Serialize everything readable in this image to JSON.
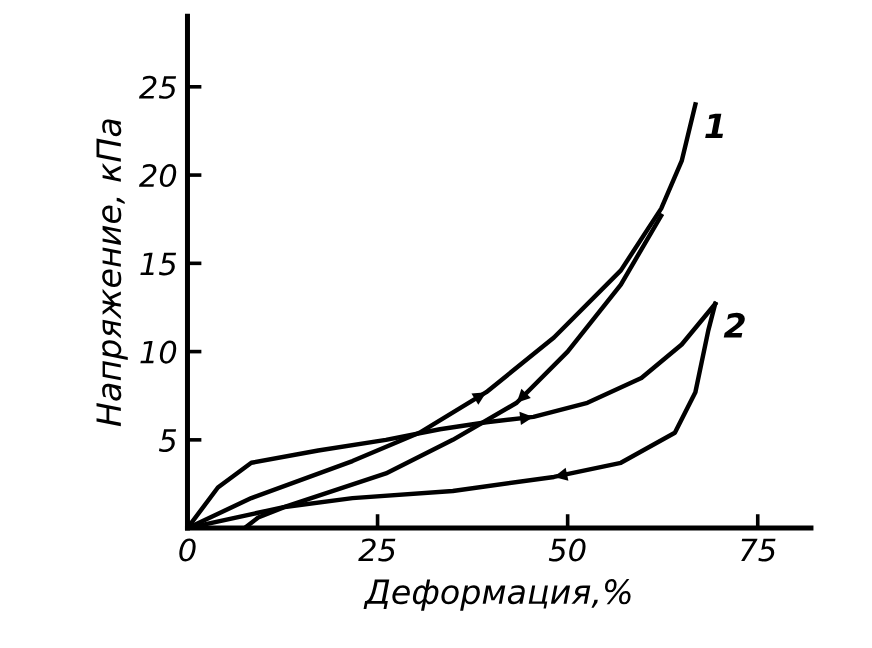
{
  "chart_data": {
    "type": "line",
    "xlabel": "Деформация,%",
    "ylabel": "Напряжение, кПа",
    "xlim": [
      0,
      82
    ],
    "ylim": [
      0,
      29
    ],
    "xticks": [
      0,
      25,
      50,
      75
    ],
    "yticks": [
      5,
      10,
      15,
      20,
      25
    ],
    "grid": false,
    "legend": false,
    "marker": "none",
    "line_style": "solid",
    "series": [
      {
        "name": "1",
        "color": "#000000",
        "x": [
          0,
          8.4,
          21.7,
          30.5,
          39.3,
          48.2,
          57.0,
          62.3,
          65.0,
          66.8
        ],
        "values": [
          0,
          1.7,
          3.8,
          5.4,
          7.7,
          10.8,
          14.6,
          18.1,
          20.8,
          24.0
        ]
      },
      {
        "color": "#000000",
        "x": [
          62.3,
          57.0,
          50.0,
          43.3,
          34.9,
          26.1,
          12.8,
          0
        ],
        "values": [
          17.7,
          13.8,
          10.0,
          7.1,
          5.0,
          3.1,
          1.2,
          0
        ]
      },
      {
        "name": "2",
        "color": "#000000",
        "x": [
          0,
          4.0,
          8.4,
          17.2,
          26.1,
          33.2,
          39.3,
          45.5,
          52.6,
          59.7,
          65.0,
          69.4
        ],
        "values": [
          0,
          2.3,
          3.7,
          4.4,
          5.0,
          5.6,
          6.0,
          6.3,
          7.1,
          8.5,
          10.4,
          12.7
        ]
      },
      {
        "color": "#000000",
        "x": [
          69.4,
          68.5,
          66.8,
          64.1,
          57.0,
          48.2,
          34.9,
          21.7,
          12.8,
          9.3,
          7.5
        ],
        "values": [
          12.7,
          11.2,
          7.7,
          5.4,
          3.7,
          2.9,
          2.1,
          1.7,
          1.2,
          0.6,
          0
        ]
      }
    ]
  }
}
